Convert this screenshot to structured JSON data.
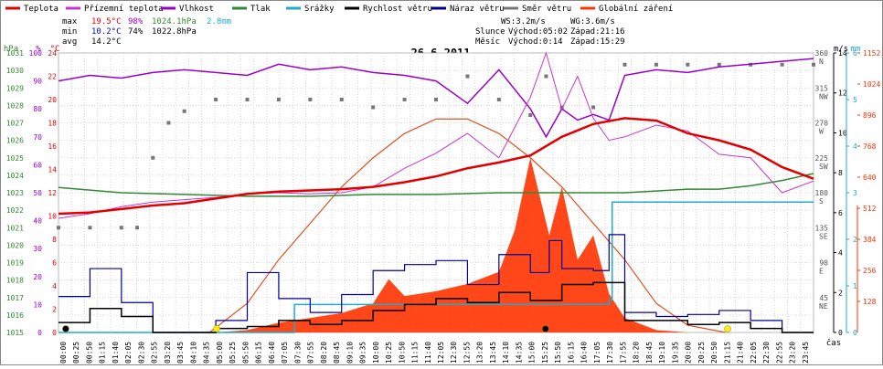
{
  "legend": [
    {
      "label": "Teplota",
      "color": "#e00000"
    },
    {
      "label": "Přízemní teplota",
      "color": "#cc33cc"
    },
    {
      "label": "Vlhkost",
      "color": "#9900cc"
    },
    {
      "label": "Tlak",
      "color": "#338833"
    },
    {
      "label": "Srážky",
      "color": "#22aacc"
    },
    {
      "label": "Rychlost větru",
      "color": "#000000"
    },
    {
      "label": "Náraz větru",
      "color": "#000099"
    },
    {
      "label": "Směr větru",
      "color": "#777777"
    },
    {
      "label": "Globální záření",
      "color": "#ff3300"
    }
  ],
  "stats": {
    "max": {
      "label": "max",
      "temp": "19.5°C",
      "hum": "98%",
      "press": "1024.1hPa",
      "rain": "2.8mm"
    },
    "min": {
      "label": "min",
      "temp": "10.2°C",
      "hum": "74%",
      "press": "1022.8hPa"
    },
    "avg": {
      "label": "avg",
      "temp": "14.2°C"
    }
  },
  "info": {
    "ws": "WS:3.2m/s",
    "wg": "WG:3.6m/s",
    "sun_label": "Slunce",
    "sun_rise": "Východ:05:02",
    "sun_set": "Západ:21:16",
    "moon_label": "Měsíc",
    "moon_rise": "Východ:0:14",
    "moon_set": "Západ:15:29"
  },
  "chart_data": {
    "type": "line",
    "title": "26.6.2011",
    "xlabel": "čas",
    "x_ticks": [
      "00:00",
      "00:25",
      "00:50",
      "01:15",
      "01:40",
      "02:05",
      "02:30",
      "02:55",
      "03:20",
      "03:45",
      "04:10",
      "04:35",
      "05:00",
      "05:25",
      "05:50",
      "06:15",
      "06:40",
      "07:05",
      "07:30",
      "07:55",
      "08:20",
      "08:45",
      "09:10",
      "09:35",
      "10:00",
      "10:25",
      "10:50",
      "11:15",
      "11:40",
      "12:05",
      "12:30",
      "12:55",
      "13:20",
      "13:45",
      "14:10",
      "14:35",
      "15:00",
      "15:25",
      "15:50",
      "16:15",
      "16:40",
      "17:05",
      "17:30",
      "17:55",
      "18:20",
      "18:45",
      "19:10",
      "19:35",
      "20:00",
      "20:25",
      "20:50",
      "21:15",
      "21:40",
      "22:05",
      "22:30",
      "22:55",
      "23:20",
      "23:45"
    ],
    "axes": {
      "hpa": {
        "label": "hPa",
        "ticks": [
          "1031",
          "1030",
          "1029",
          "1028",
          "1027",
          "1026",
          "1025",
          "1024",
          "1023",
          "1022",
          "1021",
          "1020",
          "1019",
          "1018",
          "1017",
          "1016",
          "1015"
        ],
        "range": [
          1015,
          1031
        ],
        "color": "#338833"
      },
      "percent": {
        "label": "%",
        "ticks": [
          "100",
          "90",
          "80",
          "70",
          "60",
          "50",
          "40",
          "30",
          "20",
          "10",
          "0"
        ],
        "range": [
          0,
          100
        ],
        "color": "#9900cc"
      },
      "celsius": {
        "label": "°C",
        "ticks": [
          "24",
          "22",
          "20",
          "18",
          "16",
          "14",
          "12",
          "10",
          "8",
          "6",
          "4",
          "2",
          "0"
        ],
        "range": [
          0,
          24
        ],
        "color": "#e00000"
      },
      "ms": {
        "label": "m/s",
        "ticks": [
          "14",
          "12",
          "10",
          "8",
          "6",
          "4",
          "2",
          "0"
        ],
        "range": [
          0,
          14
        ],
        "color": "#000000"
      },
      "mm": {
        "label": "mm",
        "ticks": [
          "6",
          "5",
          "4",
          "3",
          "2",
          "1",
          "0"
        ],
        "range": [
          0,
          6
        ],
        "color": "#22aacc"
      },
      "direction": {
        "ticks": [
          "360 N",
          "315 NW",
          "270 W",
          "225 SW",
          "180 S",
          "135 SE",
          "90 E",
          "45 NE"
        ],
        "range": [
          0,
          360
        ],
        "color": "#555555"
      },
      "radiation": {
        "ticks": [
          "1152",
          "1024",
          "896",
          "768",
          "640",
          "512",
          "384",
          "256",
          "128"
        ],
        "range": [
          0,
          1152
        ],
        "color": "#ff3300"
      }
    },
    "series": [
      {
        "name": "Teplota",
        "axis": "celsius",
        "color": "#e00000",
        "x": [
          0,
          1,
          2,
          3,
          4,
          5,
          6,
          7,
          8,
          9,
          10,
          11,
          12,
          13,
          14,
          15,
          16,
          17,
          18,
          19,
          20,
          21,
          22,
          23,
          24
        ],
        "y": [
          10.2,
          10.3,
          10.6,
          10.9,
          11.1,
          11.5,
          11.9,
          12.1,
          12.2,
          12.3,
          12.5,
          12.9,
          13.4,
          14.1,
          14.6,
          15.2,
          16.8,
          17.9,
          18.4,
          18.2,
          17.1,
          16.5,
          15.7,
          14.2,
          13.2
        ]
      },
      {
        "name": "Přízemní teplota",
        "axis": "celsius",
        "color": "#cc33cc",
        "x": [
          0,
          1,
          2,
          3,
          4,
          5,
          6,
          7,
          8,
          9,
          10,
          11,
          12,
          13,
          14,
          15,
          15.5,
          16,
          16.5,
          17,
          17.5,
          18,
          19,
          20,
          21,
          22,
          23,
          24
        ],
        "y": [
          9.8,
          10.2,
          10.8,
          11.2,
          11.4,
          11.6,
          11.9,
          12.0,
          11.9,
          12.0,
          12.5,
          14.1,
          15.4,
          17.1,
          15.0,
          20.2,
          24.0,
          19.2,
          22.0,
          18.4,
          16.5,
          16.8,
          17.8,
          17.3,
          15.3,
          15.0,
          12.0,
          13.0
        ]
      },
      {
        "name": "Vlhkost",
        "axis": "percent",
        "color": "#9900cc",
        "x": [
          0,
          1,
          2,
          3,
          4,
          5,
          6,
          7,
          8,
          9,
          10,
          11,
          12,
          13,
          14,
          15,
          15.5,
          16,
          16.5,
          17,
          17.5,
          18,
          19,
          20,
          21,
          22,
          23,
          24
        ],
        "y": [
          90,
          92,
          91,
          93,
          94,
          93,
          92,
          96,
          94,
          95,
          93,
          92,
          90,
          82,
          94,
          80,
          70,
          80,
          76,
          78,
          76,
          92,
          94,
          93,
          95,
          96,
          97,
          98
        ]
      },
      {
        "name": "Tlak",
        "axis": "hpa",
        "color": "#338833",
        "x": [
          0,
          2,
          4,
          6,
          8,
          10,
          12,
          14,
          16,
          18,
          19,
          20,
          21,
          22,
          23,
          24
        ],
        "y": [
          1023.3,
          1023.0,
          1022.9,
          1022.8,
          1022.8,
          1022.9,
          1022.9,
          1023.0,
          1023.0,
          1023.0,
          1023.1,
          1023.2,
          1023.2,
          1023.4,
          1023.7,
          1024.1
        ]
      },
      {
        "name": "Srážky",
        "axis": "mm",
        "color": "#22aacc",
        "x": [
          0,
          7,
          7.5,
          17.5,
          17.6,
          18,
          24
        ],
        "y": [
          0,
          0,
          0.6,
          0.7,
          2.8,
          2.8,
          2.8
        ]
      },
      {
        "name": "Rychlost větru",
        "axis": "ms",
        "color": "#000000",
        "x": [
          0,
          1,
          2,
          3,
          4,
          5,
          6,
          7,
          8,
          9,
          10,
          11,
          12,
          13,
          14,
          15,
          16,
          17,
          18,
          19,
          20,
          21,
          22,
          23,
          24
        ],
        "y": [
          0.5,
          1.2,
          0.8,
          0,
          0,
          0.2,
          0.3,
          0.6,
          0.4,
          0.6,
          1.1,
          1.4,
          1.7,
          1.5,
          2.0,
          1.6,
          2.4,
          2.5,
          0.6,
          0.6,
          0.4,
          0.5,
          0.2,
          0,
          0
        ]
      },
      {
        "name": "Náraz větru",
        "axis": "ms",
        "color": "#000099",
        "x": [
          0,
          1,
          2,
          3,
          4,
          5,
          6,
          7,
          8,
          9,
          10,
          11,
          12,
          13,
          14,
          15,
          15.6,
          16,
          17,
          17.5,
          18,
          19,
          20,
          21,
          22,
          23,
          24
        ],
        "y": [
          1.8,
          3.2,
          1.5,
          0,
          0,
          0.6,
          3.0,
          1.7,
          1.0,
          1.9,
          3.1,
          3.4,
          3.6,
          2.4,
          3.9,
          3.0,
          4.6,
          3.2,
          3.1,
          4.9,
          1.0,
          0.8,
          0.9,
          1.1,
          0.6,
          0,
          0
        ]
      },
      {
        "name": "Směr větru",
        "axis": "direction",
        "color": "#777777",
        "x": [
          0,
          1,
          2,
          2.5,
          3,
          3.5,
          4,
          5,
          6,
          7,
          8,
          9,
          10,
          11,
          12,
          13,
          14,
          15,
          15.5,
          16,
          17,
          18,
          19,
          20,
          21,
          22,
          23,
          24
        ],
        "y": [
          135,
          135,
          135,
          135,
          225,
          270,
          285,
          300,
          300,
          300,
          300,
          300,
          290,
          300,
          300,
          330,
          300,
          280,
          330,
          290,
          290,
          345,
          345,
          345,
          345,
          345,
          345,
          345
        ]
      },
      {
        "name": "Globální záření",
        "axis": "radiation",
        "color": "#ff3300",
        "x": [
          0,
          4,
          5,
          6,
          7,
          8,
          9,
          10,
          10.5,
          11,
          11.5,
          12,
          13,
          14,
          14.5,
          15,
          15.3,
          15.6,
          16,
          16.5,
          17,
          17.5,
          18,
          19,
          20,
          21,
          24
        ],
        "y": [
          0,
          0,
          0,
          10,
          40,
          60,
          80,
          120,
          220,
          150,
          160,
          170,
          200,
          250,
          420,
          720,
          560,
          400,
          600,
          300,
          400,
          160,
          60,
          10,
          0,
          0,
          0
        ]
      },
      {
        "name": "radiation-max",
        "axis": "radiation",
        "color": "#e05020",
        "x": [
          4.8,
          6,
          7,
          8,
          9,
          10,
          11,
          12,
          13,
          14,
          15,
          16,
          17,
          18,
          19,
          20,
          21.2
        ],
        "y": [
          0,
          120,
          300,
          450,
          600,
          720,
          820,
          880,
          880,
          820,
          720,
          600,
          450,
          300,
          120,
          30,
          0
        ]
      }
    ],
    "markers": [
      {
        "name": "moonrise",
        "x": 0.23,
        "color": "#000000"
      },
      {
        "name": "sunrise",
        "x": 5.03,
        "color": "#ffee00"
      },
      {
        "name": "moonset",
        "x": 15.48,
        "color": "#000000"
      },
      {
        "name": "sunset",
        "x": 21.27,
        "color": "#ffee00"
      }
    ],
    "grid": true
  }
}
